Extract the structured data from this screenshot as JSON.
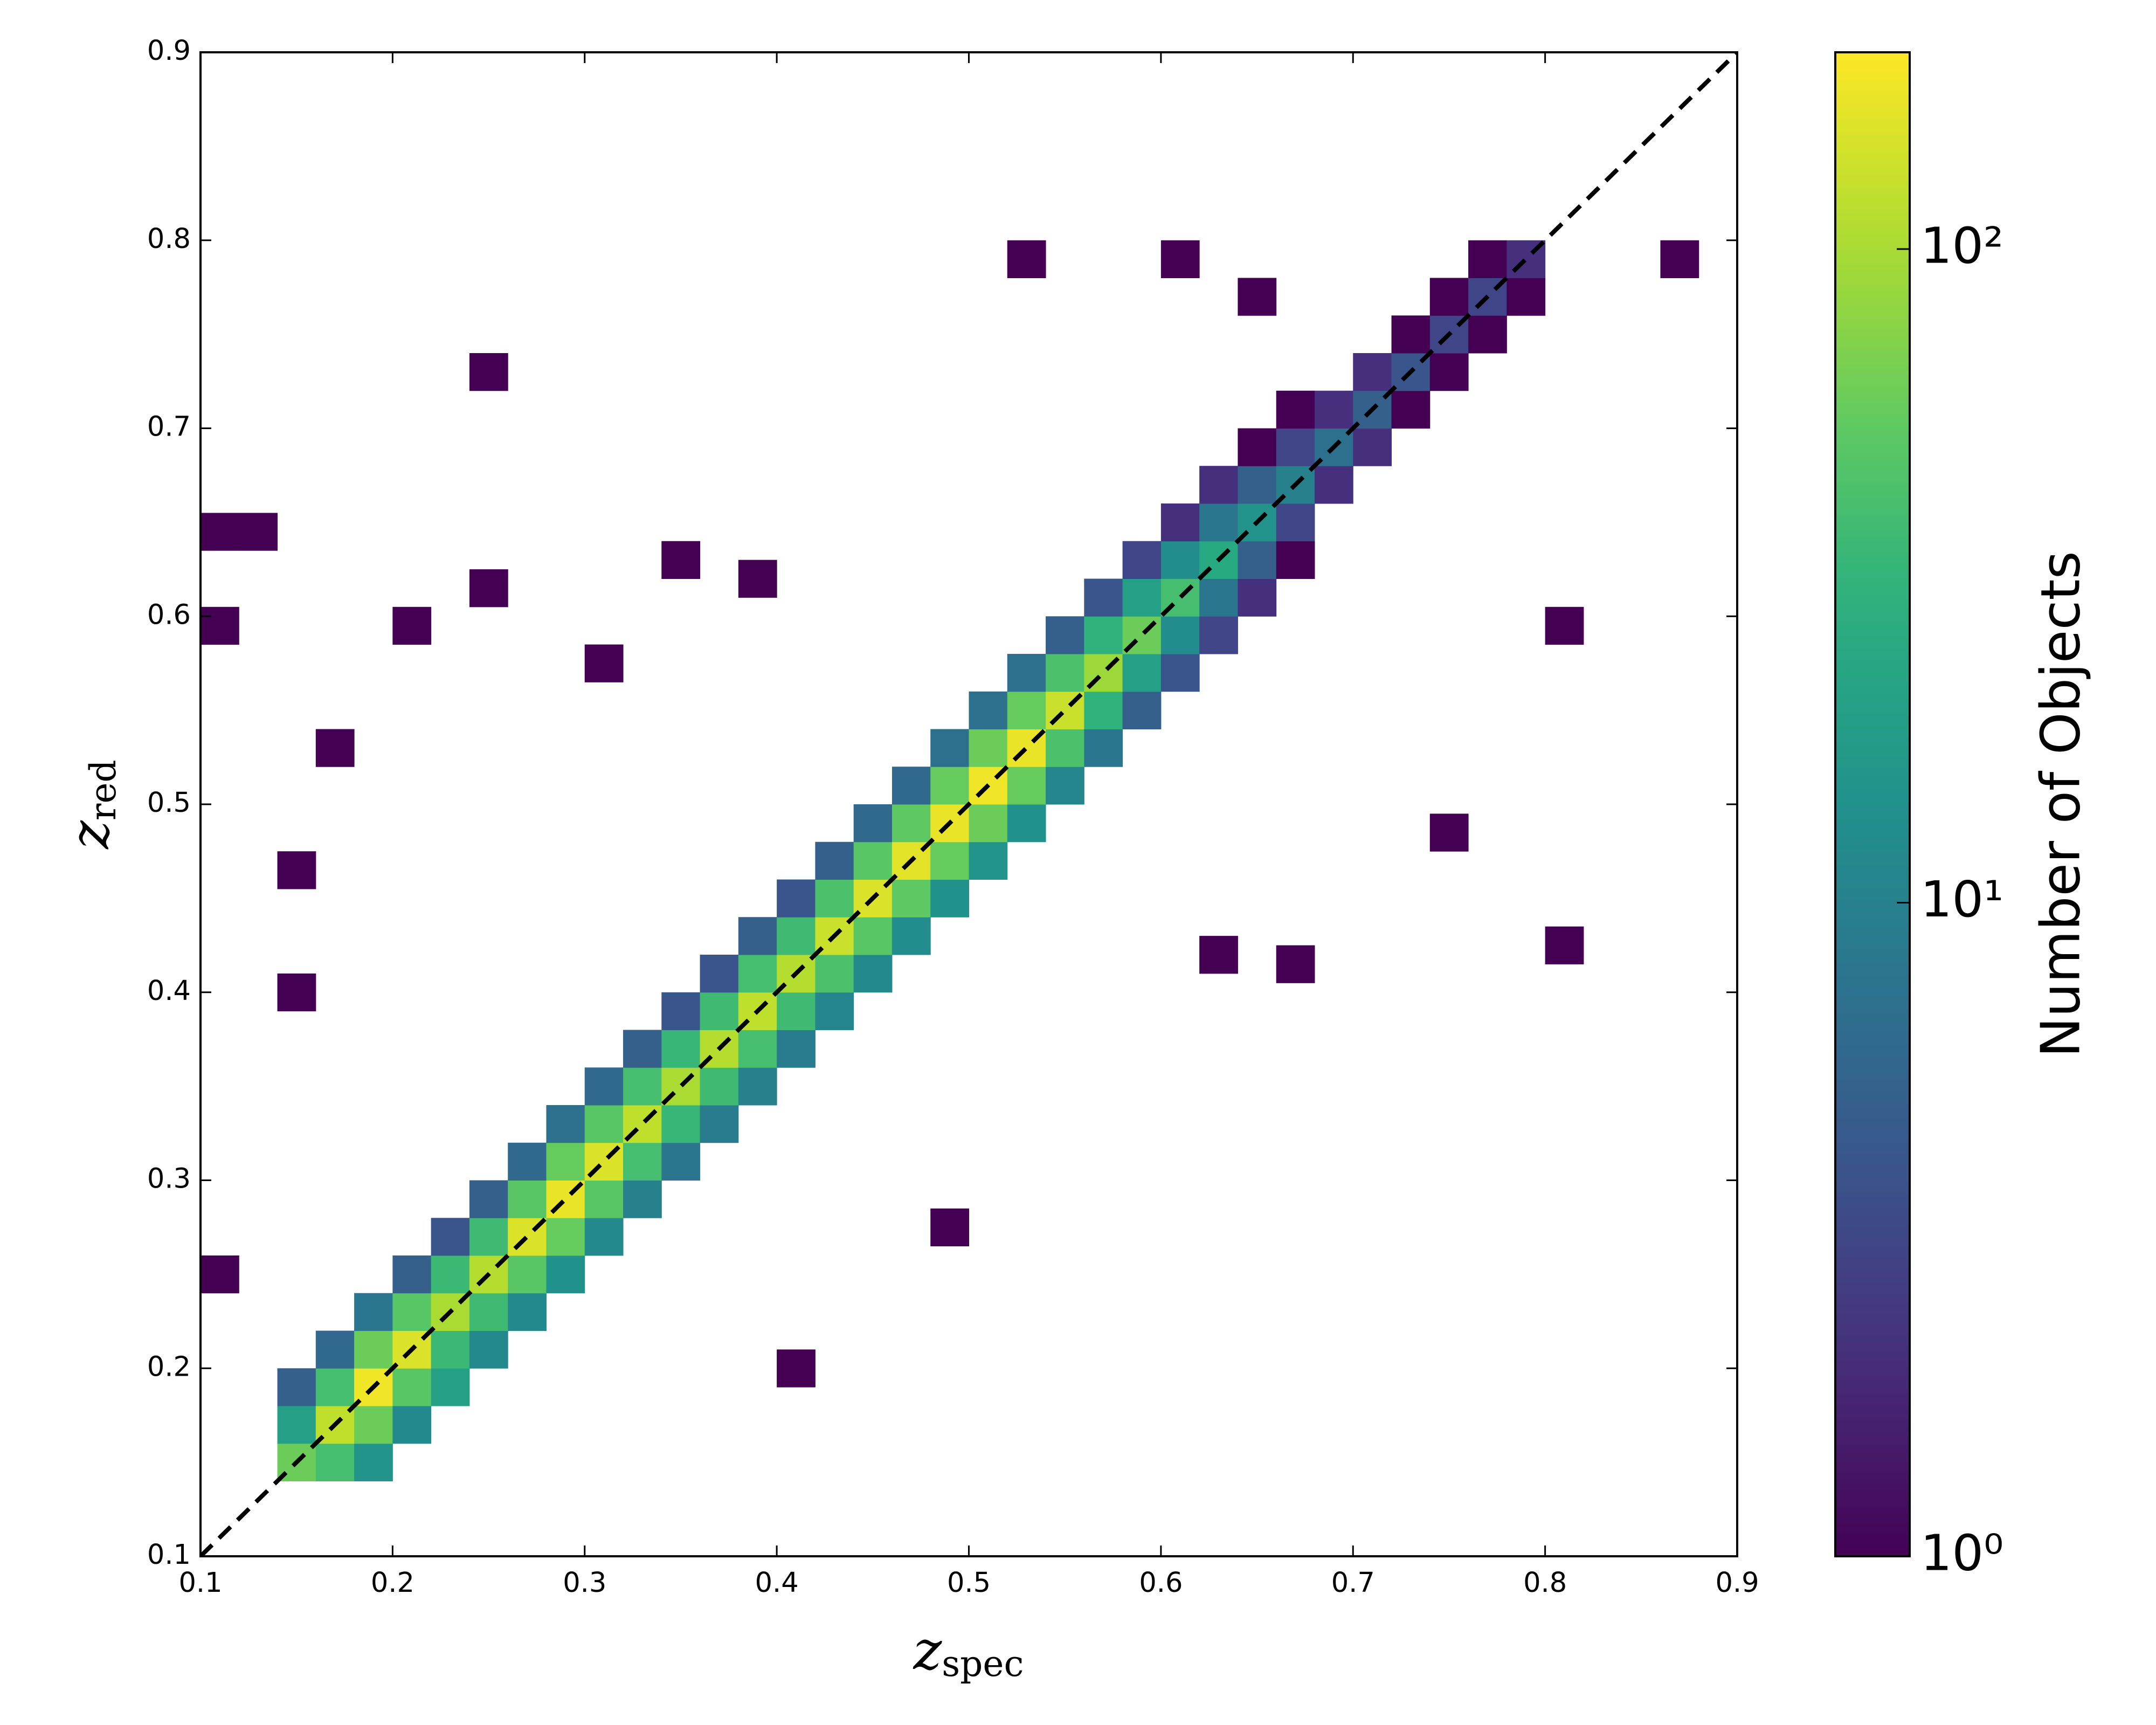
{
  "chart_data": {
    "type": "hist2d",
    "xlabel": {
      "main": "z",
      "sub": "spec"
    },
    "ylabel": {
      "main": "z",
      "sub": "red"
    },
    "colorbar_label": "Number of Objects",
    "colormap": "viridis",
    "color_scale": "log",
    "clim": [
      1,
      200
    ],
    "cticks": [
      {
        "value": 1,
        "label": "10⁰"
      },
      {
        "value": 10,
        "label": "10¹"
      },
      {
        "value": 100,
        "label": "10²"
      }
    ],
    "xlim": [
      0.1,
      0.9
    ],
    "ylim": [
      0.1,
      0.9
    ],
    "xticks": [
      0.1,
      0.2,
      0.3,
      0.4,
      0.5,
      0.6,
      0.7,
      0.8,
      0.9
    ],
    "yticks": [
      0.1,
      0.2,
      0.3,
      0.4,
      0.5,
      0.6,
      0.7,
      0.8,
      0.9
    ],
    "bin_width": 0.02,
    "bin_height": 0.02,
    "cells": [
      [
        0.15,
        0.15,
        60
      ],
      [
        0.15,
        0.17,
        20
      ],
      [
        0.15,
        0.19,
        5
      ],
      [
        0.17,
        0.15,
        40
      ],
      [
        0.17,
        0.17,
        120
      ],
      [
        0.17,
        0.19,
        40
      ],
      [
        0.17,
        0.21,
        6
      ],
      [
        0.19,
        0.15,
        15
      ],
      [
        0.19,
        0.17,
        60
      ],
      [
        0.19,
        0.19,
        180
      ],
      [
        0.19,
        0.21,
        60
      ],
      [
        0.19,
        0.23,
        8
      ],
      [
        0.21,
        0.17,
        12
      ],
      [
        0.21,
        0.19,
        50
      ],
      [
        0.21,
        0.21,
        150
      ],
      [
        0.21,
        0.23,
        50
      ],
      [
        0.21,
        0.25,
        5
      ],
      [
        0.23,
        0.19,
        20
      ],
      [
        0.23,
        0.21,
        35
      ],
      [
        0.23,
        0.23,
        100
      ],
      [
        0.23,
        0.25,
        35
      ],
      [
        0.23,
        0.27,
        4
      ],
      [
        0.25,
        0.21,
        12
      ],
      [
        0.25,
        0.23,
        37
      ],
      [
        0.25,
        0.25,
        110
      ],
      [
        0.25,
        0.27,
        37
      ],
      [
        0.25,
        0.29,
        5
      ],
      [
        0.27,
        0.23,
        12
      ],
      [
        0.27,
        0.25,
        50
      ],
      [
        0.27,
        0.27,
        150
      ],
      [
        0.27,
        0.29,
        50
      ],
      [
        0.27,
        0.31,
        6
      ],
      [
        0.29,
        0.25,
        14
      ],
      [
        0.29,
        0.27,
        57
      ],
      [
        0.29,
        0.29,
        170
      ],
      [
        0.29,
        0.31,
        57
      ],
      [
        0.29,
        0.33,
        7
      ],
      [
        0.31,
        0.27,
        12
      ],
      [
        0.31,
        0.29,
        50
      ],
      [
        0.31,
        0.31,
        150
      ],
      [
        0.31,
        0.33,
        50
      ],
      [
        0.31,
        0.35,
        6
      ],
      [
        0.33,
        0.29,
        10
      ],
      [
        0.33,
        0.31,
        40
      ],
      [
        0.33,
        0.33,
        120
      ],
      [
        0.33,
        0.35,
        40
      ],
      [
        0.33,
        0.37,
        5
      ],
      [
        0.35,
        0.31,
        8
      ],
      [
        0.35,
        0.33,
        33
      ],
      [
        0.35,
        0.35,
        100
      ],
      [
        0.35,
        0.37,
        33
      ],
      [
        0.35,
        0.39,
        4
      ],
      [
        0.37,
        0.33,
        9
      ],
      [
        0.37,
        0.35,
        37
      ],
      [
        0.37,
        0.37,
        110
      ],
      [
        0.37,
        0.39,
        37
      ],
      [
        0.37,
        0.41,
        4
      ],
      [
        0.39,
        0.35,
        10
      ],
      [
        0.39,
        0.37,
        40
      ],
      [
        0.39,
        0.39,
        120
      ],
      [
        0.39,
        0.41,
        40
      ],
      [
        0.39,
        0.43,
        5
      ],
      [
        0.41,
        0.37,
        9
      ],
      [
        0.41,
        0.39,
        37
      ],
      [
        0.41,
        0.41,
        110
      ],
      [
        0.41,
        0.43,
        37
      ],
      [
        0.41,
        0.45,
        4
      ],
      [
        0.43,
        0.39,
        11
      ],
      [
        0.43,
        0.41,
        43
      ],
      [
        0.43,
        0.43,
        130
      ],
      [
        0.43,
        0.45,
        43
      ],
      [
        0.43,
        0.47,
        5
      ],
      [
        0.45,
        0.41,
        12
      ],
      [
        0.45,
        0.43,
        50
      ],
      [
        0.45,
        0.45,
        150
      ],
      [
        0.45,
        0.47,
        50
      ],
      [
        0.45,
        0.49,
        6
      ],
      [
        0.47,
        0.43,
        13
      ],
      [
        0.47,
        0.45,
        53
      ],
      [
        0.47,
        0.47,
        160
      ],
      [
        0.47,
        0.49,
        53
      ],
      [
        0.47,
        0.51,
        6
      ],
      [
        0.49,
        0.45,
        14
      ],
      [
        0.49,
        0.47,
        57
      ],
      [
        0.49,
        0.49,
        170
      ],
      [
        0.49,
        0.51,
        57
      ],
      [
        0.49,
        0.53,
        7
      ],
      [
        0.51,
        0.47,
        15
      ],
      [
        0.51,
        0.49,
        60
      ],
      [
        0.51,
        0.51,
        180
      ],
      [
        0.51,
        0.53,
        60
      ],
      [
        0.51,
        0.55,
        7
      ],
      [
        0.53,
        0.49,
        14
      ],
      [
        0.53,
        0.51,
        57
      ],
      [
        0.53,
        0.53,
        170
      ],
      [
        0.53,
        0.55,
        57
      ],
      [
        0.53,
        0.57,
        7
      ],
      [
        0.55,
        0.51,
        11
      ],
      [
        0.55,
        0.53,
        43
      ],
      [
        0.55,
        0.55,
        130
      ],
      [
        0.55,
        0.57,
        43
      ],
      [
        0.55,
        0.59,
        5
      ],
      [
        0.57,
        0.53,
        8
      ],
      [
        0.57,
        0.55,
        30
      ],
      [
        0.57,
        0.57,
        90
      ],
      [
        0.57,
        0.59,
        30
      ],
      [
        0.57,
        0.61,
        4
      ],
      [
        0.59,
        0.55,
        5
      ],
      [
        0.59,
        0.57,
        20
      ],
      [
        0.59,
        0.59,
        60
      ],
      [
        0.59,
        0.61,
        20
      ],
      [
        0.59,
        0.63,
        3
      ],
      [
        0.61,
        0.57,
        4
      ],
      [
        0.61,
        0.59,
        13
      ],
      [
        0.61,
        0.61,
        40
      ],
      [
        0.61,
        0.63,
        13
      ],
      [
        0.61,
        0.65,
        2
      ],
      [
        0.63,
        0.59,
        3
      ],
      [
        0.63,
        0.61,
        8
      ],
      [
        0.63,
        0.63,
        25
      ],
      [
        0.63,
        0.65,
        8
      ],
      [
        0.63,
        0.67,
        2
      ],
      [
        0.65,
        0.61,
        2
      ],
      [
        0.65,
        0.63,
        5
      ],
      [
        0.65,
        0.65,
        15
      ],
      [
        0.65,
        0.67,
        5
      ],
      [
        0.65,
        0.69,
        1
      ],
      [
        0.67,
        0.63,
        1
      ],
      [
        0.67,
        0.65,
        3
      ],
      [
        0.67,
        0.67,
        10
      ],
      [
        0.67,
        0.69,
        3
      ],
      [
        0.67,
        0.71,
        1
      ],
      [
        0.69,
        0.67,
        2
      ],
      [
        0.69,
        0.69,
        7
      ],
      [
        0.69,
        0.71,
        2
      ],
      [
        0.71,
        0.69,
        2
      ],
      [
        0.71,
        0.71,
        5
      ],
      [
        0.71,
        0.73,
        2
      ],
      [
        0.73,
        0.71,
        1
      ],
      [
        0.73,
        0.73,
        4
      ],
      [
        0.73,
        0.75,
        1
      ],
      [
        0.75,
        0.73,
        1
      ],
      [
        0.75,
        0.75,
        3
      ],
      [
        0.75,
        0.77,
        1
      ],
      [
        0.77,
        0.75,
        1
      ],
      [
        0.77,
        0.77,
        3
      ],
      [
        0.77,
        0.79,
        1
      ],
      [
        0.79,
        0.77,
        1
      ],
      [
        0.79,
        0.79,
        2
      ],
      [
        0.11,
        0.645,
        1
      ],
      [
        0.13,
        0.645,
        1
      ],
      [
        0.11,
        0.595,
        1
      ],
      [
        0.25,
        0.73,
        1
      ],
      [
        0.25,
        0.615,
        1
      ],
      [
        0.35,
        0.63,
        1
      ],
      [
        0.15,
        0.465,
        1
      ],
      [
        0.15,
        0.4,
        1
      ],
      [
        0.21,
        0.595,
        1
      ],
      [
        0.49,
        0.275,
        1
      ],
      [
        0.41,
        0.2,
        1
      ],
      [
        0.81,
        0.425,
        1
      ],
      [
        0.67,
        0.415,
        1
      ],
      [
        0.53,
        0.79,
        1
      ],
      [
        0.61,
        0.79,
        1
      ],
      [
        0.87,
        0.79,
        1
      ],
      [
        0.11,
        0.25,
        1
      ],
      [
        0.31,
        0.575,
        1
      ],
      [
        0.17,
        0.53,
        1
      ],
      [
        0.39,
        0.62,
        1
      ],
      [
        0.63,
        0.42,
        1
      ],
      [
        0.75,
        0.485,
        1
      ],
      [
        0.81,
        0.595,
        1
      ],
      [
        0.65,
        0.77,
        1
      ]
    ]
  }
}
